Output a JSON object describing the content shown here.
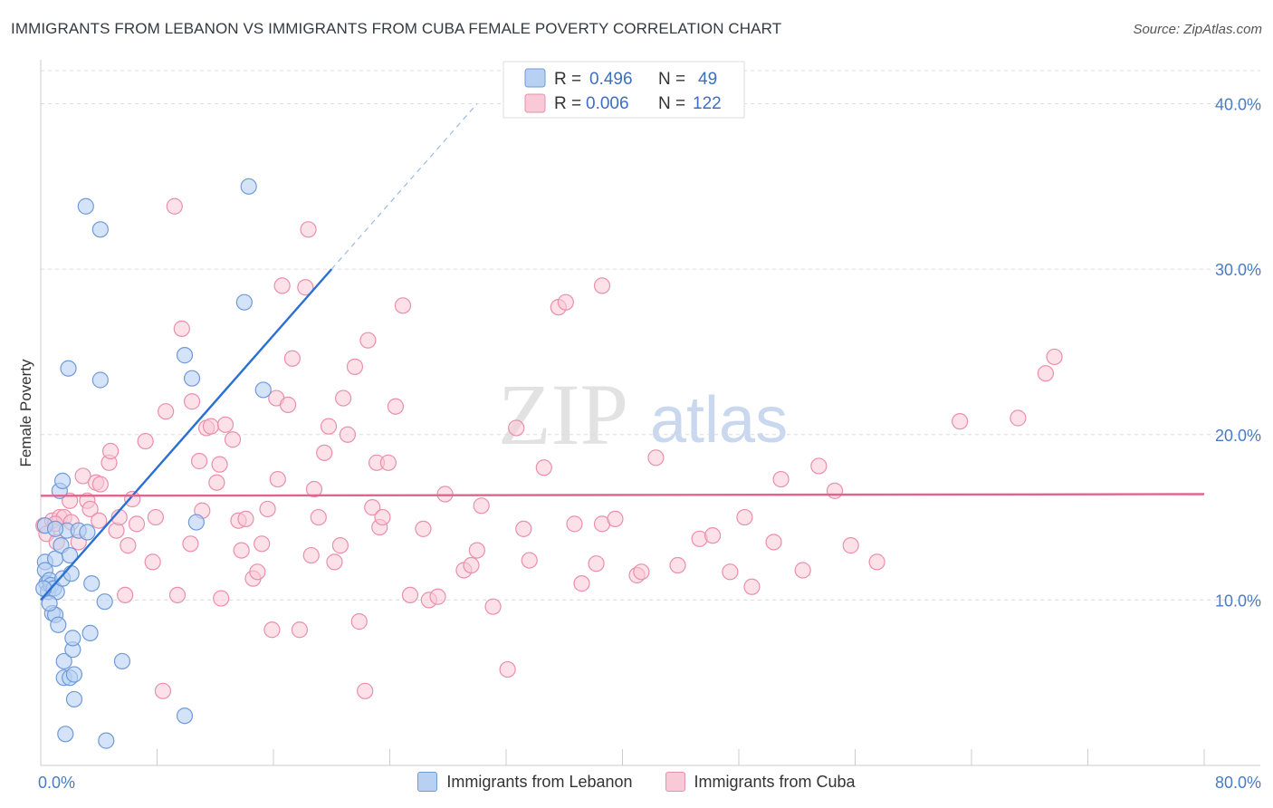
{
  "header": {
    "title": "IMMIGRANTS FROM LEBANON VS IMMIGRANTS FROM CUBA FEMALE POVERTY CORRELATION CHART",
    "source": "Source: ZipAtlas.com"
  },
  "watermark": {
    "zip": "ZIP",
    "atlas": "atlas"
  },
  "colors": {
    "lebanon_fill": "#b8d0f2",
    "lebanon_stroke": "#6f9ad8",
    "lebanon_line": "#2a6fd4",
    "cuba_fill": "#f9c9d7",
    "cuba_stroke": "#ea8fac",
    "cuba_line": "#e0658e",
    "tick_color": "#4a7cc4"
  },
  "legend": {
    "rows": [
      {
        "r_label": "R =",
        "r_value": "0.496",
        "n_label": "N =",
        "n_value": "49"
      },
      {
        "r_label": "R =",
        "r_value": "0.006",
        "n_label": "N =",
        "n_value": "122"
      }
    ]
  },
  "chart_data": {
    "type": "scatter",
    "title": "IMMIGRANTS FROM LEBANON VS IMMIGRANTS FROM CUBA FEMALE POVERTY CORRELATION CHART",
    "xlabel": "",
    "ylabel": "Female Poverty",
    "xlim": [
      0,
      80
    ],
    "ylim": [
      0,
      42
    ],
    "x_tick_labels": [
      "0.0%",
      "80.0%"
    ],
    "y_ticks": [
      10,
      20,
      30,
      40
    ],
    "y_tick_labels": [
      "10.0%",
      "20.0%",
      "30.0%",
      "40.0%"
    ],
    "grid": true,
    "legend_position": "top-center",
    "series": [
      {
        "name": "Immigrants from Lebanon",
        "r": 0.496,
        "n": 49,
        "trend": {
          "x0": 0,
          "y0": 10,
          "x1": 20,
          "y1": 30,
          "dashed_to_x": 30
        },
        "points": [
          [
            0.3,
            14.5
          ],
          [
            0.3,
            12.3
          ],
          [
            0.3,
            11.8
          ],
          [
            0.4,
            11.0
          ],
          [
            0.5,
            10.5
          ],
          [
            0.6,
            11.2
          ],
          [
            0.7,
            10.9
          ],
          [
            0.8,
            9.2
          ],
          [
            0.9,
            10.7
          ],
          [
            1.0,
            12.5
          ],
          [
            1.0,
            9.1
          ],
          [
            1.1,
            10.5
          ],
          [
            1.2,
            8.5
          ],
          [
            1.3,
            16.6
          ],
          [
            1.4,
            13.3
          ],
          [
            1.5,
            11.3
          ],
          [
            1.5,
            17.2
          ],
          [
            1.6,
            6.3
          ],
          [
            1.6,
            5.3
          ],
          [
            1.7,
            1.9
          ],
          [
            1.8,
            14.2
          ],
          [
            1.9,
            24.0
          ],
          [
            2.0,
            5.3
          ],
          [
            2.0,
            12.7
          ],
          [
            2.1,
            11.6
          ],
          [
            2.2,
            7.0
          ],
          [
            2.2,
            7.7
          ],
          [
            2.3,
            5.5
          ],
          [
            2.3,
            4.0
          ],
          [
            2.6,
            14.2
          ],
          [
            3.1,
            33.8
          ],
          [
            3.2,
            14.1
          ],
          [
            3.4,
            8.0
          ],
          [
            3.5,
            11.0
          ],
          [
            4.1,
            32.4
          ],
          [
            4.1,
            23.3
          ],
          [
            4.4,
            9.9
          ],
          [
            4.5,
            1.5
          ],
          [
            5.6,
            6.3
          ],
          [
            9.9,
            24.8
          ],
          [
            9.9,
            3.0
          ],
          [
            10.4,
            23.4
          ],
          [
            10.7,
            14.7
          ],
          [
            14.0,
            28.0
          ],
          [
            14.3,
            35.0
          ],
          [
            15.3,
            22.7
          ],
          [
            0.2,
            10.7
          ],
          [
            0.6,
            9.8
          ],
          [
            1.0,
            14.3
          ]
        ]
      },
      {
        "name": "Immigrants from Cuba",
        "r": 0.006,
        "n": 122,
        "trend": {
          "x0": 0,
          "y0": 16.3,
          "x1": 80,
          "y1": 16.4
        },
        "points": [
          [
            0.2,
            14.5
          ],
          [
            0.4,
            14.0
          ],
          [
            0.8,
            14.8
          ],
          [
            1.1,
            13.5
          ],
          [
            1.3,
            15.0
          ],
          [
            1.6,
            15.0
          ],
          [
            2.0,
            16.0
          ],
          [
            2.1,
            14.7
          ],
          [
            2.6,
            13.5
          ],
          [
            2.9,
            17.5
          ],
          [
            3.2,
            16.0
          ],
          [
            3.4,
            15.5
          ],
          [
            3.8,
            17.1
          ],
          [
            4.0,
            14.8
          ],
          [
            4.1,
            17.0
          ],
          [
            4.7,
            18.3
          ],
          [
            4.8,
            19.0
          ],
          [
            5.2,
            14.2
          ],
          [
            5.4,
            15.0
          ],
          [
            5.8,
            10.3
          ],
          [
            6.0,
            13.3
          ],
          [
            6.3,
            16.1
          ],
          [
            6.6,
            14.6
          ],
          [
            7.2,
            19.6
          ],
          [
            7.7,
            12.3
          ],
          [
            7.9,
            15.0
          ],
          [
            8.4,
            4.5
          ],
          [
            8.6,
            21.4
          ],
          [
            9.2,
            33.8
          ],
          [
            9.4,
            10.3
          ],
          [
            9.7,
            26.4
          ],
          [
            10.3,
            13.4
          ],
          [
            10.4,
            22.0
          ],
          [
            10.9,
            18.4
          ],
          [
            11.1,
            15.4
          ],
          [
            11.4,
            20.4
          ],
          [
            11.7,
            20.5
          ],
          [
            12.1,
            17.1
          ],
          [
            12.3,
            18.2
          ],
          [
            12.4,
            10.1
          ],
          [
            12.7,
            20.6
          ],
          [
            13.2,
            19.7
          ],
          [
            13.6,
            14.8
          ],
          [
            13.8,
            13.0
          ],
          [
            14.1,
            14.9
          ],
          [
            14.6,
            11.3
          ],
          [
            14.9,
            11.7
          ],
          [
            15.2,
            13.4
          ],
          [
            15.6,
            15.5
          ],
          [
            15.9,
            8.2
          ],
          [
            16.2,
            22.2
          ],
          [
            16.3,
            17.3
          ],
          [
            16.6,
            29.0
          ],
          [
            17.0,
            21.8
          ],
          [
            17.3,
            24.6
          ],
          [
            17.8,
            8.2
          ],
          [
            18.2,
            28.9
          ],
          [
            18.4,
            32.4
          ],
          [
            18.6,
            12.7
          ],
          [
            18.8,
            16.7
          ],
          [
            19.1,
            15.0
          ],
          [
            19.5,
            18.9
          ],
          [
            19.8,
            20.5
          ],
          [
            20.2,
            12.3
          ],
          [
            20.6,
            13.3
          ],
          [
            20.8,
            22.2
          ],
          [
            21.1,
            20.0
          ],
          [
            21.6,
            24.1
          ],
          [
            21.9,
            8.7
          ],
          [
            22.3,
            4.5
          ],
          [
            22.5,
            25.7
          ],
          [
            22.8,
            15.6
          ],
          [
            23.1,
            18.3
          ],
          [
            23.3,
            14.4
          ],
          [
            23.5,
            15.0
          ],
          [
            23.9,
            18.3
          ],
          [
            24.4,
            21.7
          ],
          [
            24.9,
            27.8
          ],
          [
            25.4,
            10.3
          ],
          [
            26.3,
            14.3
          ],
          [
            26.7,
            10.0
          ],
          [
            27.3,
            10.2
          ],
          [
            27.8,
            16.4
          ],
          [
            29.1,
            11.8
          ],
          [
            29.6,
            12.1
          ],
          [
            30.0,
            13.0
          ],
          [
            30.3,
            15.7
          ],
          [
            31.1,
            9.6
          ],
          [
            32.1,
            5.8
          ],
          [
            32.7,
            20.4
          ],
          [
            33.2,
            14.3
          ],
          [
            33.6,
            12.4
          ],
          [
            34.6,
            18.0
          ],
          [
            35.6,
            27.7
          ],
          [
            36.1,
            28.0
          ],
          [
            36.7,
            14.6
          ],
          [
            37.2,
            11.0
          ],
          [
            38.2,
            12.2
          ],
          [
            38.6,
            29.0
          ],
          [
            38.6,
            14.6
          ],
          [
            39.5,
            14.9
          ],
          [
            41.0,
            11.5
          ],
          [
            41.3,
            11.7
          ],
          [
            42.3,
            18.6
          ],
          [
            43.8,
            12.1
          ],
          [
            45.3,
            13.7
          ],
          [
            46.2,
            13.9
          ],
          [
            47.4,
            11.7
          ],
          [
            48.4,
            15.0
          ],
          [
            48.9,
            10.8
          ],
          [
            50.4,
            13.5
          ],
          [
            50.9,
            17.3
          ],
          [
            52.4,
            11.8
          ],
          [
            53.5,
            18.1
          ],
          [
            54.6,
            16.6
          ],
          [
            55.7,
            13.3
          ],
          [
            57.5,
            12.3
          ],
          [
            63.2,
            20.8
          ],
          [
            67.2,
            21.0
          ],
          [
            69.1,
            23.7
          ],
          [
            69.7,
            24.7
          ],
          [
            1.0,
            14.6
          ]
        ]
      }
    ]
  },
  "bottom_legend": [
    {
      "label": "Immigrants from Lebanon"
    },
    {
      "label": "Immigrants from Cuba"
    }
  ]
}
